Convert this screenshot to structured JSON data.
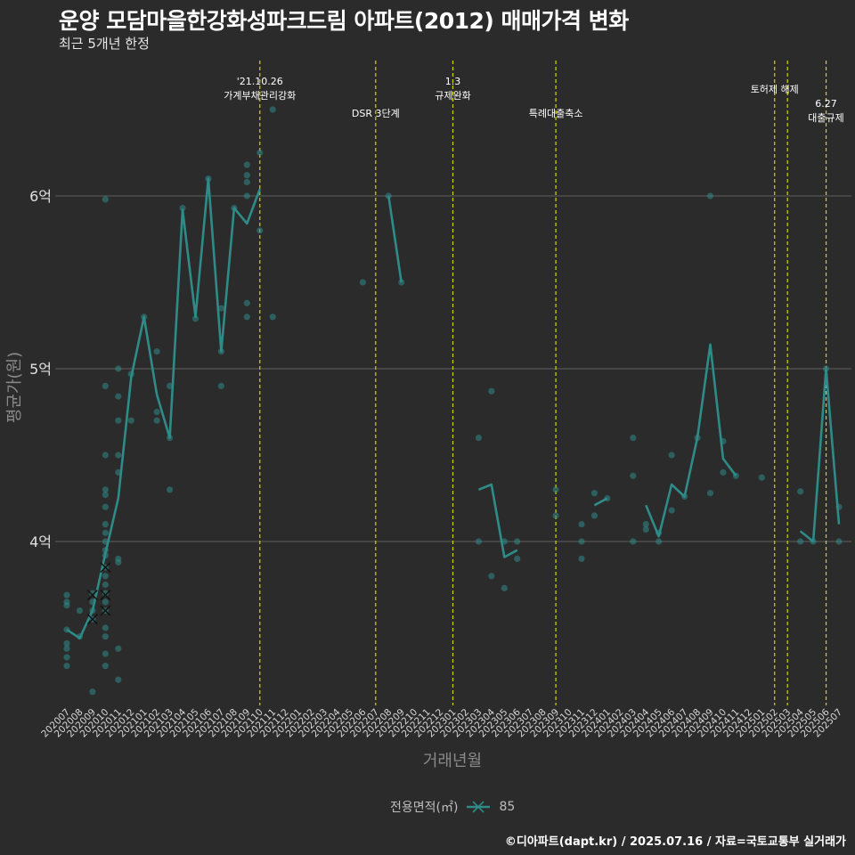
{
  "title": "운양 모담마을한강화성파크드림 아파트(2012) 매매가격 변화",
  "subtitle": "최근 5개년 한정",
  "footer": "©디아파트(dapt.kr) / 2025.07.16 / 자료=국토교통부 실거래가",
  "legend": {
    "title": "전용면적(㎡)",
    "item": "85"
  },
  "colors": {
    "background": "#2b2b2b",
    "series": "#2e8b88",
    "event_line": "#d4d400",
    "grid": "#5f5f5f"
  },
  "chart_data": {
    "type": "line",
    "title": "운양 모담마을한강화성파크드림 아파트(2012) 매매가격 변화",
    "subtitle": "최근 5개년 한정",
    "xlabel": "거래년월",
    "ylabel": "평균가(원)",
    "ylim": [
      3.05,
      6.95
    ],
    "yticks": [
      {
        "value": 4,
        "label": "4억"
      },
      {
        "value": 5,
        "label": "5억"
      },
      {
        "value": 6,
        "label": "6억"
      }
    ],
    "categories": [
      "202007",
      "202008",
      "202009",
      "202010",
      "202011",
      "202012",
      "202101",
      "202102",
      "202103",
      "202104",
      "202105",
      "202106",
      "202107",
      "202108",
      "202109",
      "202110",
      "202111",
      "202112",
      "202201",
      "202202",
      "202203",
      "202204",
      "202205",
      "202206",
      "202207",
      "202208",
      "202209",
      "202210",
      "202211",
      "202212",
      "202301",
      "202302",
      "202303",
      "202304",
      "202305",
      "202306",
      "202307",
      "202308",
      "202309",
      "202310",
      "202311",
      "202312",
      "202401",
      "202402",
      "202403",
      "202404",
      "202405",
      "202406",
      "202407",
      "202408",
      "202409",
      "202410",
      "202411",
      "202412",
      "202501",
      "202502",
      "202503",
      "202504",
      "202505",
      "202506",
      "202507"
    ],
    "series": [
      {
        "name": "85",
        "values": [
          3.49,
          3.44,
          3.6,
          3.93,
          4.25,
          4.95,
          5.3,
          4.85,
          4.6,
          5.92,
          5.3,
          6.1,
          5.1,
          5.93,
          5.84,
          6.04,
          null,
          null,
          null,
          null,
          null,
          null,
          null,
          null,
          null,
          6.0,
          5.5,
          null,
          null,
          null,
          null,
          null,
          4.3,
          4.33,
          3.91,
          3.95,
          null,
          null,
          null,
          null,
          null,
          4.21,
          4.25,
          null,
          null,
          4.21,
          4.03,
          4.33,
          4.26,
          4.6,
          5.14,
          4.48,
          4.38,
          null,
          null,
          null,
          null,
          4.06,
          4.0,
          5.0,
          4.1
        ]
      }
    ],
    "points": [
      {
        "x": "202007",
        "y": [
          3.28,
          3.33,
          3.38,
          3.41,
          3.49,
          3.63,
          3.65,
          3.69
        ]
      },
      {
        "x": "202008",
        "y": [
          3.6,
          3.45
        ]
      },
      {
        "x": "202009",
        "y": [
          3.13,
          3.6,
          3.7,
          3.65,
          3.55
        ]
      },
      {
        "x": "202010",
        "y": [
          3.28,
          3.35,
          3.45,
          3.5,
          3.65,
          3.7,
          3.75,
          3.8,
          3.85,
          3.92,
          3.95,
          4.0,
          4.05,
          4.1,
          4.2,
          4.27,
          4.3,
          4.5,
          4.9,
          5.98,
          3.6
        ]
      },
      {
        "x": "202011",
        "y": [
          3.2,
          3.38,
          3.88,
          3.9,
          4.4,
          4.5,
          4.7,
          4.84,
          5.0
        ]
      },
      {
        "x": "202012",
        "y": [
          4.7,
          4.97
        ]
      },
      {
        "x": "202101",
        "y": [
          5.3
        ]
      },
      {
        "x": "202102",
        "y": [
          4.7,
          4.75,
          5.1
        ]
      },
      {
        "x": "202103",
        "y": [
          4.3,
          4.6,
          4.9
        ]
      },
      {
        "x": "202104",
        "y": [
          5.93
        ]
      },
      {
        "x": "202105",
        "y": [
          5.29
        ]
      },
      {
        "x": "202106",
        "y": [
          6.1
        ]
      },
      {
        "x": "202107",
        "y": [
          4.9,
          5.1,
          5.35
        ]
      },
      {
        "x": "202108",
        "y": [
          5.93
        ]
      },
      {
        "x": "202109",
        "y": [
          5.3,
          5.38,
          6.0,
          6.08,
          6.12,
          6.18
        ]
      },
      {
        "x": "202110",
        "y": [
          5.8,
          6.25
        ]
      },
      {
        "x": "202111",
        "y": [
          5.3,
          6.5
        ]
      },
      {
        "x": "202206",
        "y": [
          5.5
        ]
      },
      {
        "x": "202208",
        "y": [
          6.0
        ]
      },
      {
        "x": "202209",
        "y": [
          5.5
        ]
      },
      {
        "x": "202303",
        "y": [
          4.0,
          4.6
        ]
      },
      {
        "x": "202304",
        "y": [
          3.8,
          4.87
        ]
      },
      {
        "x": "202305",
        "y": [
          3.73,
          4.0
        ]
      },
      {
        "x": "202306",
        "y": [
          3.9,
          4.0
        ]
      },
      {
        "x": "202309",
        "y": [
          4.15,
          4.3
        ]
      },
      {
        "x": "202311",
        "y": [
          3.9,
          4.0,
          4.1
        ]
      },
      {
        "x": "202312",
        "y": [
          4.15,
          4.28
        ]
      },
      {
        "x": "202401",
        "y": [
          4.25
        ]
      },
      {
        "x": "202403",
        "y": [
          4.0,
          4.38,
          4.6
        ]
      },
      {
        "x": "202404",
        "y": [
          4.07,
          4.1
        ]
      },
      {
        "x": "202405",
        "y": [
          4.0,
          4.05
        ]
      },
      {
        "x": "202406",
        "y": [
          4.18,
          4.5
        ]
      },
      {
        "x": "202407",
        "y": [
          4.26
        ]
      },
      {
        "x": "202408",
        "y": [
          4.6
        ]
      },
      {
        "x": "202409",
        "y": [
          4.28,
          6.0
        ]
      },
      {
        "x": "202410",
        "y": [
          4.4,
          4.58
        ]
      },
      {
        "x": "202411",
        "y": [
          4.38
        ]
      },
      {
        "x": "202501",
        "y": [
          4.37
        ]
      },
      {
        "x": "202504",
        "y": [
          4.0,
          4.29
        ]
      },
      {
        "x": "202505",
        "y": [
          4.0
        ]
      },
      {
        "x": "202506",
        "y": [
          5.0
        ]
      },
      {
        "x": "202507",
        "y": [
          4.0,
          4.2
        ]
      }
    ],
    "cross_markers": [
      {
        "x": "202009",
        "y": [
          3.55,
          3.69
        ]
      },
      {
        "x": "202010",
        "y": [
          3.6,
          3.69,
          3.85
        ]
      }
    ],
    "events": [
      {
        "x": "202110",
        "lines": [
          "'21.10.26",
          "가계부채관리강화"
        ]
      },
      {
        "x": "202207",
        "lines": [
          "DSR 3단계"
        ]
      },
      {
        "x": "202301",
        "lines": [
          "1.3",
          "규제완화"
        ]
      },
      {
        "x": "202309",
        "lines": [
          "특례대출축소"
        ]
      },
      {
        "x": "202502",
        "lines": [
          "토허제 해제"
        ]
      },
      {
        "x": "202503",
        "lines": []
      },
      {
        "x": "202506",
        "lines": [
          "6.27",
          "대출규제"
        ]
      }
    ],
    "grid": true,
    "legend_position": "bottom"
  }
}
